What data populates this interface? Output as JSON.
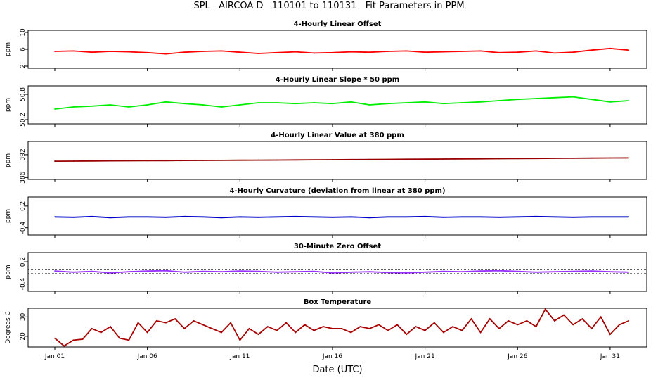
{
  "title": "SPL   AIRCOA D   110101 to 110131   Fit Parameters in PPM",
  "xlabel": "Date (UTC)",
  "x_ticks": [
    "Jan 01",
    "Jan 06",
    "Jan 11",
    "Jan 16",
    "Jan 21",
    "Jan 26",
    "Jan 31"
  ],
  "chart_data": [
    {
      "type": "line",
      "title": "4-Hourly Linear Offset",
      "ylabel": "ppm",
      "y_ticks": [
        "2",
        "6",
        "10"
      ],
      "ylim": [
        1.5,
        10.5
      ],
      "color": "#ff0000",
      "x_days": [
        1,
        2,
        3,
        4,
        5,
        6,
        7,
        8,
        9,
        10,
        11,
        12,
        13,
        14,
        15,
        16,
        17,
        18,
        19,
        20,
        21,
        22,
        23,
        24,
        25,
        26,
        27,
        28,
        29,
        30,
        31,
        32
      ],
      "values": [
        5.5,
        5.6,
        5.3,
        5.5,
        5.4,
        5.2,
        4.9,
        5.3,
        5.5,
        5.6,
        5.3,
        5.0,
        5.2,
        5.4,
        5.1,
        5.2,
        5.4,
        5.3,
        5.5,
        5.6,
        5.3,
        5.4,
        5.5,
        5.6,
        5.2,
        5.3,
        5.6,
        5.1,
        5.3,
        5.8,
        6.2,
        5.8
      ]
    },
    {
      "type": "line",
      "title": "4-Hourly Linear Slope * 50 ppm",
      "ylabel": "ppm",
      "y_ticks": [
        "50.2",
        "50.8"
      ],
      "ylim": [
        50.1,
        51.0
      ],
      "color": "#00ee00",
      "x_days": [
        1,
        2,
        3,
        4,
        5,
        6,
        7,
        8,
        9,
        10,
        11,
        12,
        13,
        14,
        15,
        16,
        17,
        18,
        19,
        20,
        21,
        22,
        23,
        24,
        25,
        26,
        27,
        28,
        29,
        30,
        31,
        32
      ],
      "values": [
        50.45,
        50.5,
        50.52,
        50.55,
        50.5,
        50.55,
        50.62,
        50.58,
        50.55,
        50.5,
        50.55,
        50.6,
        50.6,
        50.58,
        50.6,
        50.58,
        50.62,
        50.55,
        50.58,
        50.6,
        50.62,
        50.58,
        50.6,
        50.62,
        50.65,
        50.68,
        50.7,
        50.72,
        50.74,
        50.68,
        50.62,
        50.65
      ]
    },
    {
      "type": "line",
      "title": "4-Hourly Linear Value at 380 ppm",
      "ylabel": "ppm",
      "y_ticks": [
        "386",
        "392"
      ],
      "ylim": [
        385.5,
        395.5
      ],
      "color": "#990000",
      "x_days": [
        1,
        2,
        3,
        4,
        5,
        6,
        7,
        8,
        9,
        10,
        11,
        12,
        13,
        14,
        15,
        16,
        17,
        18,
        19,
        20,
        21,
        22,
        23,
        24,
        25,
        26,
        27,
        28,
        29,
        30,
        31,
        32
      ],
      "values": [
        390.3,
        390.32,
        390.35,
        390.38,
        390.4,
        390.42,
        390.45,
        390.48,
        390.5,
        390.52,
        390.55,
        390.58,
        390.6,
        390.63,
        390.66,
        390.69,
        390.72,
        390.75,
        390.78,
        390.81,
        390.84,
        390.87,
        390.9,
        390.93,
        390.96,
        390.99,
        391.02,
        391.05,
        391.08,
        391.11,
        391.14,
        391.17
      ]
    },
    {
      "type": "line",
      "title": "4-Hourly Curvature (deviation from linear at 380 ppm)",
      "ylabel": "ppm",
      "y_ticks": [
        "-0.4",
        "0.2"
      ],
      "ylim": [
        -0.6,
        0.45
      ],
      "color": "#0000cc",
      "x_days": [
        1,
        2,
        3,
        4,
        5,
        6,
        7,
        8,
        9,
        10,
        11,
        12,
        13,
        14,
        15,
        16,
        17,
        18,
        19,
        20,
        21,
        22,
        23,
        24,
        25,
        26,
        27,
        28,
        29,
        30,
        31,
        32
      ],
      "values": [
        -0.1,
        -0.11,
        -0.09,
        -0.12,
        -0.1,
        -0.1,
        -0.11,
        -0.09,
        -0.1,
        -0.12,
        -0.1,
        -0.11,
        -0.1,
        -0.09,
        -0.1,
        -0.11,
        -0.1,
        -0.12,
        -0.1,
        -0.1,
        -0.09,
        -0.11,
        -0.1,
        -0.1,
        -0.11,
        -0.1,
        -0.09,
        -0.1,
        -0.11,
        -0.1,
        -0.1,
        -0.1
      ]
    },
    {
      "type": "line",
      "title": "30-Minute Zero Offset",
      "ylabel": "ppm",
      "y_ticks": [
        "-0.4",
        "0.2"
      ],
      "ylim": [
        -0.6,
        0.45
      ],
      "color": "#9933ff",
      "reference_lines": [
        0.0,
        -0.12
      ],
      "x_days": [
        1,
        2,
        3,
        4,
        5,
        6,
        7,
        8,
        9,
        10,
        11,
        12,
        13,
        14,
        15,
        16,
        17,
        18,
        19,
        20,
        21,
        22,
        23,
        24,
        25,
        26,
        27,
        28,
        29,
        30,
        31,
        32
      ],
      "values": [
        -0.05,
        -0.08,
        -0.06,
        -0.1,
        -0.07,
        -0.05,
        -0.04,
        -0.08,
        -0.06,
        -0.07,
        -0.05,
        -0.06,
        -0.08,
        -0.07,
        -0.06,
        -0.1,
        -0.08,
        -0.07,
        -0.09,
        -0.1,
        -0.08,
        -0.06,
        -0.07,
        -0.05,
        -0.04,
        -0.06,
        -0.08,
        -0.07,
        -0.06,
        -0.05,
        -0.07,
        -0.08
      ]
    },
    {
      "type": "line",
      "title": "Box Temperature",
      "ylabel": "Degrees C",
      "y_ticks": [
        "20",
        "30"
      ],
      "ylim": [
        14.5,
        34.5
      ],
      "color": "#aa0000",
      "x_days": [
        1,
        1.5,
        2,
        2.5,
        3,
        3.5,
        4,
        4.5,
        5,
        5.5,
        6,
        6.5,
        7,
        7.5,
        8,
        8.5,
        9,
        9.5,
        10,
        10.5,
        11,
        11.5,
        12,
        12.5,
        13,
        13.5,
        14,
        14.5,
        15,
        15.5,
        16,
        16.5,
        17,
        17.5,
        18,
        18.5,
        19,
        19.5,
        20,
        20.5,
        21,
        21.5,
        22,
        22.5,
        23,
        23.5,
        24,
        24.5,
        25,
        25.5,
        26,
        26.5,
        27,
        27.5,
        28,
        28.5,
        29,
        29.5,
        30,
        30.5,
        31,
        31.5,
        32
      ],
      "values": [
        19,
        15,
        18,
        18.5,
        24,
        22,
        25,
        19,
        18,
        27,
        22,
        28,
        27,
        29,
        24,
        28,
        26,
        24,
        22,
        27,
        18,
        24,
        21,
        25,
        23,
        27,
        22,
        26,
        23,
        25,
        24,
        24,
        22,
        25,
        24,
        26,
        23,
        26,
        21,
        25,
        23,
        27,
        22,
        25,
        23,
        29,
        22,
        29,
        24,
        28,
        26,
        28,
        25,
        34,
        28,
        31,
        26,
        29,
        24,
        30,
        21,
        26,
        28
      ]
    }
  ]
}
